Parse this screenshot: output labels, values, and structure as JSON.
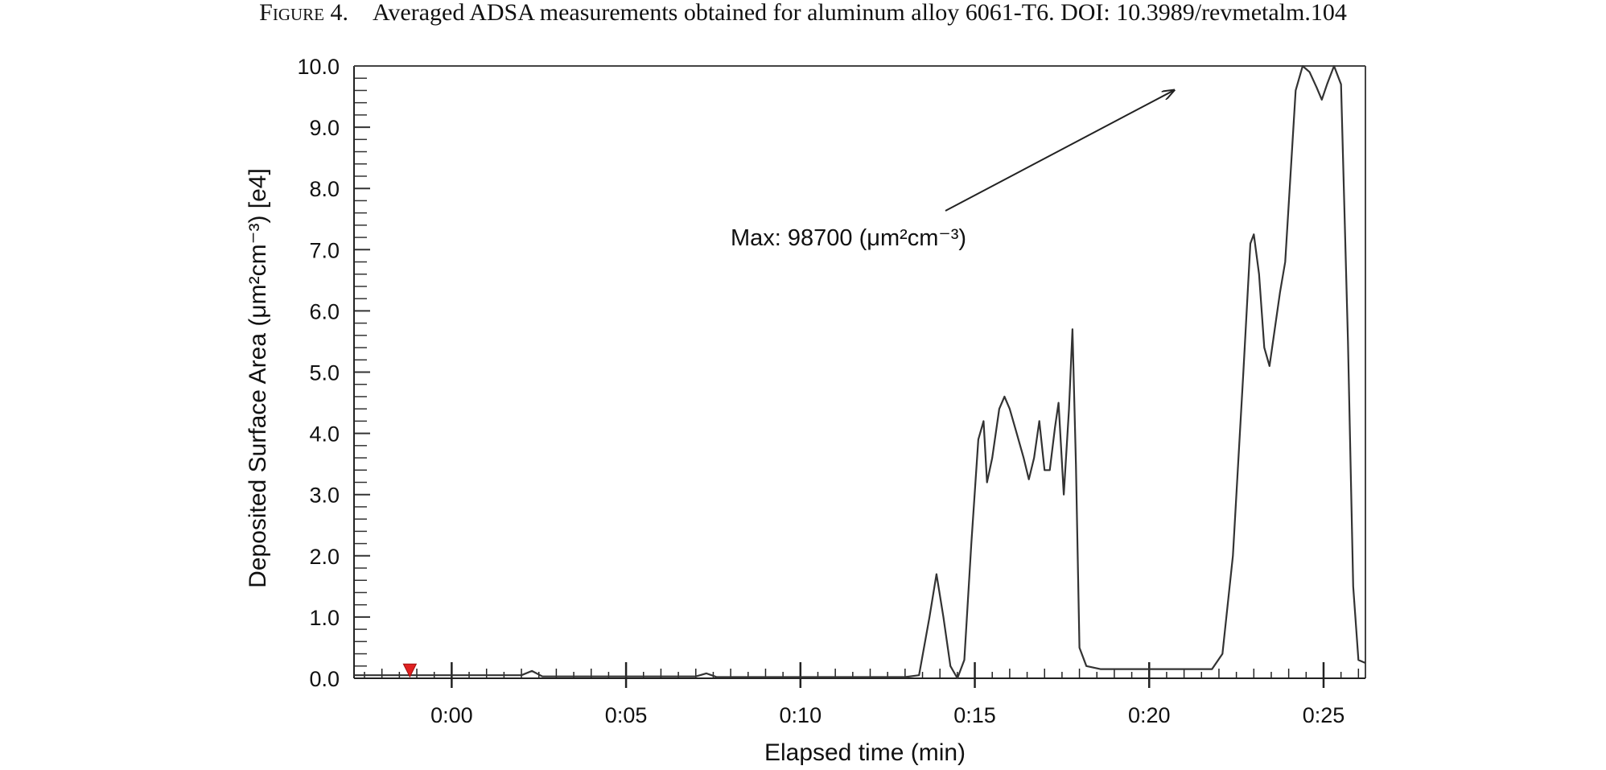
{
  "caption": {
    "figure_label": "Figure 4.",
    "text": "Averaged ADSA measurements obtained for aluminum alloy 6061-T6. DOI: 10.3989/revmetalm.104"
  },
  "chart_data": {
    "type": "line",
    "title": "",
    "xlabel": "Elapsed time (min)",
    "ylabel": "Deposited Surface Area (μm²cm⁻³) [e4]",
    "xlim": [
      -2.8,
      26.2
    ],
    "ylim": [
      0,
      10
    ],
    "x_ticks": [
      0,
      5,
      10,
      15,
      20,
      25
    ],
    "x_tick_labels": [
      "0:00",
      "0:05",
      "0:10",
      "0:15",
      "0:20",
      "0:25"
    ],
    "y_ticks": [
      0,
      1,
      2,
      3,
      4,
      5,
      6,
      7,
      8,
      9,
      10
    ],
    "y_tick_labels": [
      "0.0",
      "1.0",
      "2.0",
      "3.0",
      "4.0",
      "5.0",
      "6.0",
      "7.0",
      "8.0",
      "9.0",
      "10.0"
    ],
    "grid": false,
    "legend": "none",
    "annotation": {
      "text": "Max: 98700 (μm²cm⁻³)",
      "points_to": {
        "x": 20.7,
        "y": 9.6
      }
    },
    "marker": {
      "x": -1.2,
      "y": 0.05,
      "color": "#e02020"
    },
    "series": [
      {
        "color": "#333333",
        "points": [
          [
            -2.8,
            0.05
          ],
          [
            2.0,
            0.05
          ],
          [
            2.3,
            0.12
          ],
          [
            2.6,
            0.03
          ],
          [
            7.0,
            0.03
          ],
          [
            7.3,
            0.08
          ],
          [
            7.6,
            0.02
          ],
          [
            13.0,
            0.02
          ],
          [
            13.4,
            0.05
          ],
          [
            13.7,
            1.0
          ],
          [
            13.9,
            1.7
          ],
          [
            14.1,
            1.0
          ],
          [
            14.3,
            0.2
          ],
          [
            14.5,
            0.0
          ],
          [
            14.7,
            0.3
          ],
          [
            14.9,
            2.2
          ],
          [
            15.1,
            3.9
          ],
          [
            15.25,
            4.2
          ],
          [
            15.35,
            3.2
          ],
          [
            15.5,
            3.6
          ],
          [
            15.7,
            4.4
          ],
          [
            15.85,
            4.6
          ],
          [
            16.0,
            4.4
          ],
          [
            16.2,
            4.0
          ],
          [
            16.4,
            3.6
          ],
          [
            16.55,
            3.25
          ],
          [
            16.7,
            3.6
          ],
          [
            16.85,
            4.2
          ],
          [
            17.0,
            3.4
          ],
          [
            17.15,
            3.4
          ],
          [
            17.3,
            4.1
          ],
          [
            17.4,
            4.5
          ],
          [
            17.55,
            3.0
          ],
          [
            17.7,
            4.4
          ],
          [
            17.8,
            5.7
          ],
          [
            17.9,
            3.5
          ],
          [
            18.0,
            0.5
          ],
          [
            18.2,
            0.2
          ],
          [
            18.6,
            0.15
          ],
          [
            21.8,
            0.15
          ],
          [
            22.1,
            0.4
          ],
          [
            22.4,
            2.0
          ],
          [
            22.7,
            5.0
          ],
          [
            22.9,
            7.1
          ],
          [
            23.0,
            7.25
          ],
          [
            23.15,
            6.6
          ],
          [
            23.3,
            5.4
          ],
          [
            23.45,
            5.1
          ],
          [
            23.6,
            5.7
          ],
          [
            23.75,
            6.3
          ],
          [
            23.9,
            6.8
          ],
          [
            24.05,
            8.2
          ],
          [
            24.2,
            9.6
          ],
          [
            24.4,
            10.0
          ],
          [
            24.6,
            9.9
          ],
          [
            24.8,
            9.65
          ],
          [
            24.95,
            9.45
          ],
          [
            25.1,
            9.7
          ],
          [
            25.3,
            10.0
          ],
          [
            25.5,
            9.7
          ],
          [
            25.7,
            5.5
          ],
          [
            25.85,
            1.5
          ],
          [
            26.0,
            0.3
          ],
          [
            26.2,
            0.25
          ]
        ]
      }
    ]
  }
}
